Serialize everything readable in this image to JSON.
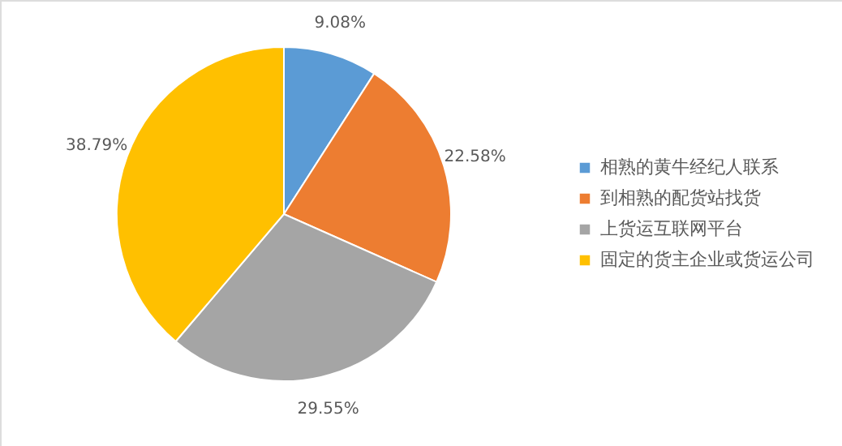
{
  "chart_data": {
    "type": "pie",
    "categories": [
      "相熟的黄牛经纪人联系",
      "到相熟的配货站找货",
      "上货运互联网平台",
      "固定的货主企业或货运公司"
    ],
    "values": [
      9.08,
      22.58,
      29.55,
      38.79
    ],
    "colors": [
      "#5b9bd5",
      "#ed7d31",
      "#a5a5a5",
      "#ffc000"
    ],
    "value_labels": [
      "9.08%",
      "22.58%",
      "29.55%",
      "38.79%"
    ],
    "legend": "right"
  }
}
